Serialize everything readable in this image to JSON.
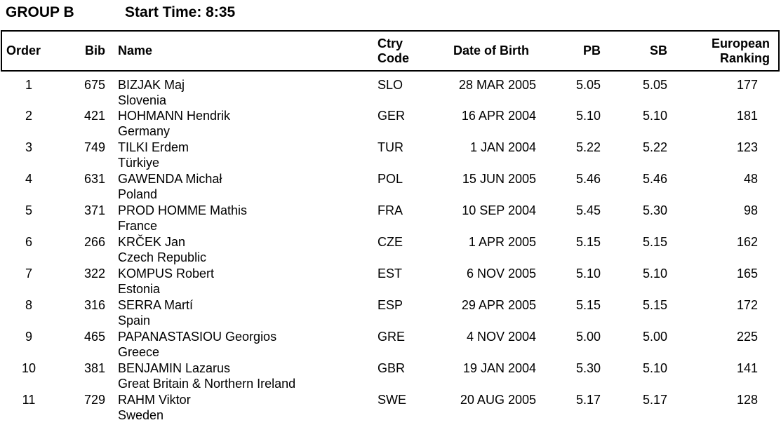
{
  "title": {
    "group": "GROUP B",
    "start_time": "Start Time: 8:35"
  },
  "table": {
    "columns": {
      "order": "Order",
      "bib": "Bib",
      "name": "Name",
      "ctry_line1": "Ctry",
      "ctry_line2": "Code",
      "dob": "Date of Birth",
      "pb": "PB",
      "sb": "SB",
      "rank_line1": "European",
      "rank_line2": "Ranking"
    },
    "rows": [
      {
        "order": "1",
        "bib": "675",
        "name": "BIZJAK Maj",
        "country": "Slovenia",
        "ctry": "SLO",
        "dob": "28 MAR 2005",
        "pb": "5.05",
        "sb": "5.05",
        "rank": "177"
      },
      {
        "order": "2",
        "bib": "421",
        "name": "HOHMANN Hendrik",
        "country": "Germany",
        "ctry": "GER",
        "dob": "16 APR 2004",
        "pb": "5.10",
        "sb": "5.10",
        "rank": "181"
      },
      {
        "order": "3",
        "bib": "749",
        "name": "TILKI Erdem",
        "country": "Türkiye",
        "ctry": "TUR",
        "dob": "1 JAN 2004",
        "pb": "5.22",
        "sb": "5.22",
        "rank": "123"
      },
      {
        "order": "4",
        "bib": "631",
        "name": "GAWENDA Michał",
        "country": "Poland",
        "ctry": "POL",
        "dob": "15 JUN 2005",
        "pb": "5.46",
        "sb": "5.46",
        "rank": "48"
      },
      {
        "order": "5",
        "bib": "371",
        "name": "PROD HOMME Mathis",
        "country": "France",
        "ctry": "FRA",
        "dob": "10 SEP 2004",
        "pb": "5.45",
        "sb": "5.30",
        "rank": "98"
      },
      {
        "order": "6",
        "bib": "266",
        "name": "KRČEK Jan",
        "country": "Czech Republic",
        "ctry": "CZE",
        "dob": "1 APR 2005",
        "pb": "5.15",
        "sb": "5.15",
        "rank": "162"
      },
      {
        "order": "7",
        "bib": "322",
        "name": "KOMPUS Robert",
        "country": "Estonia",
        "ctry": "EST",
        "dob": "6 NOV 2005",
        "pb": "5.10",
        "sb": "5.10",
        "rank": "165"
      },
      {
        "order": "8",
        "bib": "316",
        "name": "SERRA Martí",
        "country": "Spain",
        "ctry": "ESP",
        "dob": "29 APR 2005",
        "pb": "5.15",
        "sb": "5.15",
        "rank": "172"
      },
      {
        "order": "9",
        "bib": "465",
        "name": "PAPANASTASIOU Georgios",
        "country": "Greece",
        "ctry": "GRE",
        "dob": "4 NOV 2004",
        "pb": "5.00",
        "sb": "5.00",
        "rank": "225"
      },
      {
        "order": "10",
        "bib": "381",
        "name": "BENJAMIN Lazarus",
        "country": "Great Britain & Northern Ireland",
        "ctry": "GBR",
        "dob": "19 JAN 2004",
        "pb": "5.30",
        "sb": "5.10",
        "rank": "141"
      },
      {
        "order": "11",
        "bib": "729",
        "name": "RAHM Viktor",
        "country": "Sweden",
        "ctry": "SWE",
        "dob": "20 AUG 2005",
        "pb": "5.17",
        "sb": "5.17",
        "rank": "128"
      }
    ]
  }
}
